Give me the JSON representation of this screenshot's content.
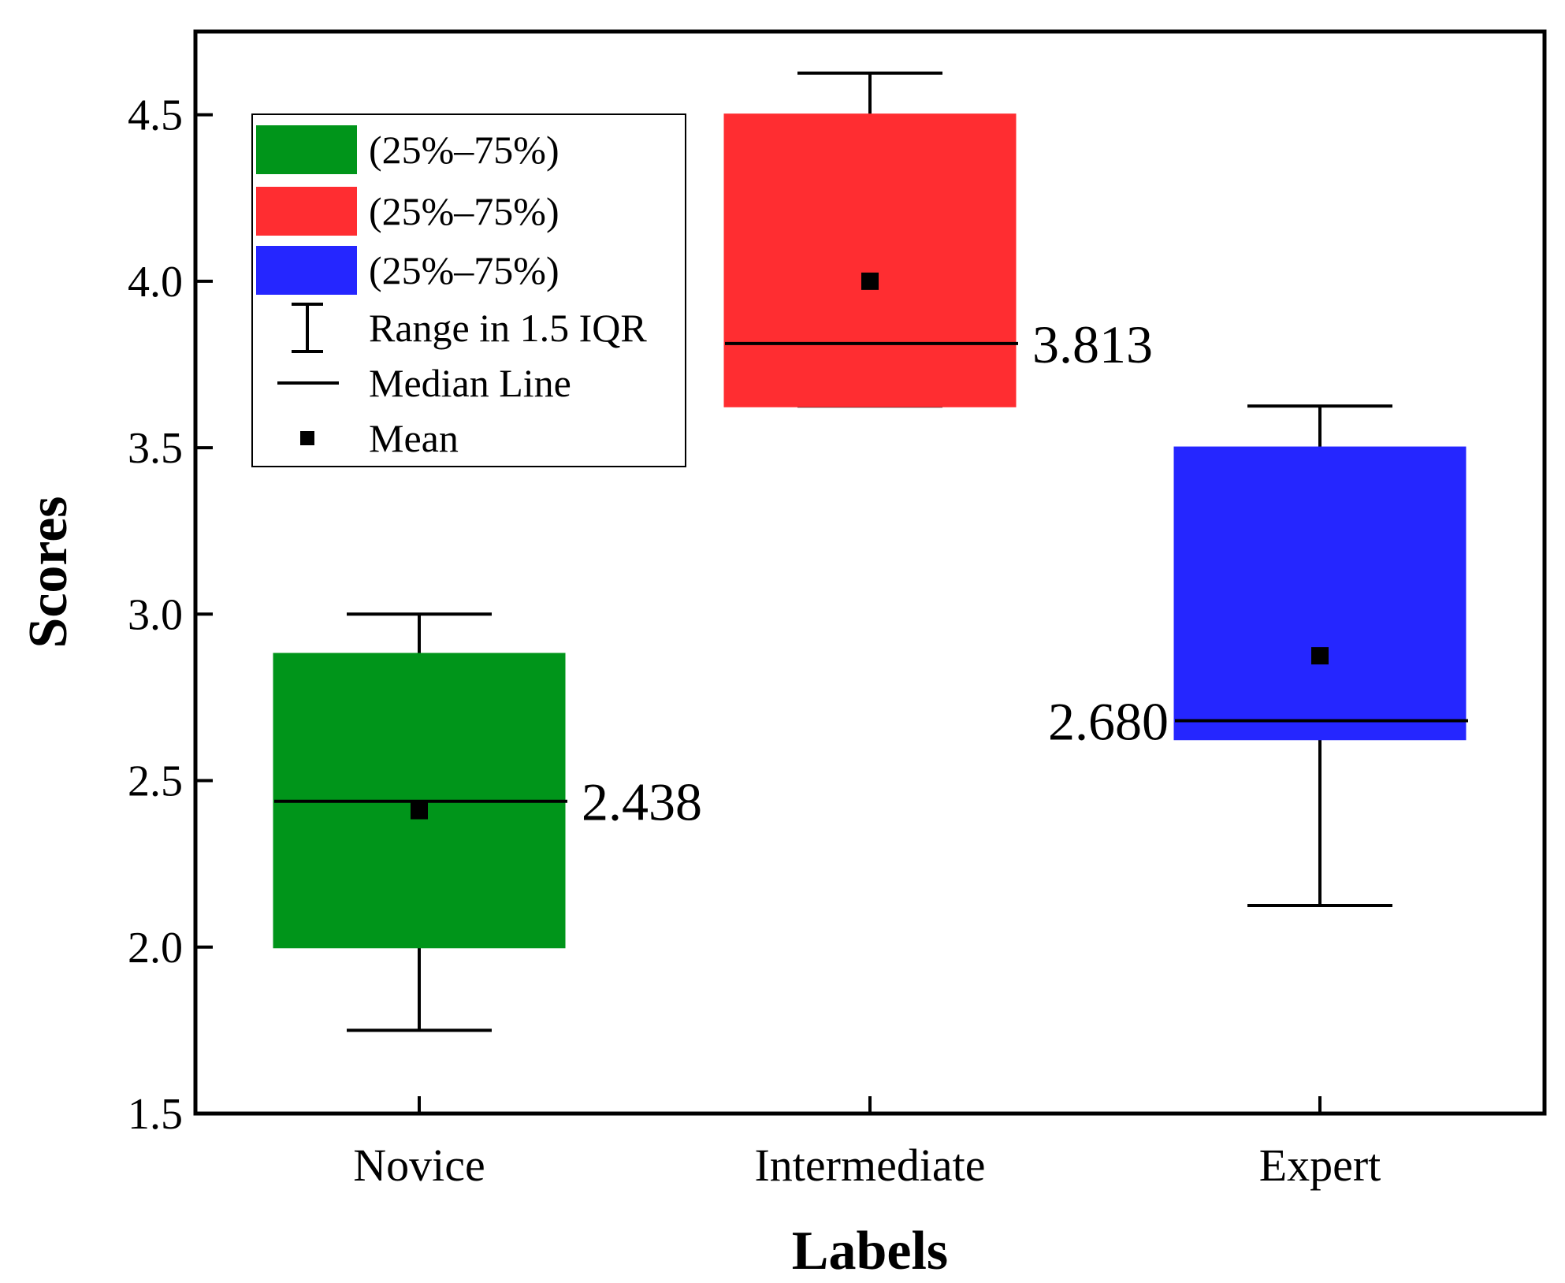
{
  "chart_data": {
    "type": "box",
    "xlabel": "Labels",
    "ylabel": "Scores",
    "ylim": [
      1.5,
      4.75
    ],
    "yticks": [
      1.5,
      2.0,
      2.5,
      3.0,
      3.5,
      4.0,
      4.5
    ],
    "ytick_labels": [
      "1.5",
      "2.0",
      "2.5",
      "3.0",
      "3.5",
      "4.0",
      "4.5"
    ],
    "categories": [
      "Novice",
      "Intermediate",
      "Expert"
    ],
    "boxes": [
      {
        "name": "Novice",
        "color": "#00951a",
        "q1": 2.0,
        "median": 2.438,
        "q3": 2.88,
        "whisker_low": 1.75,
        "whisker_high": 3.0,
        "mean": 2.41,
        "median_label": "2.438",
        "label_side": "right"
      },
      {
        "name": "Intermediate",
        "color": "#ff2d31",
        "q1": 3.625,
        "median": 3.813,
        "q3": 4.5,
        "whisker_low": 3.625,
        "whisker_high": 4.625,
        "mean": 4.0,
        "median_label": "3.813",
        "label_side": "right"
      },
      {
        "name": "Expert",
        "color": "#2526ff",
        "q1": 2.625,
        "median": 2.68,
        "q3": 3.5,
        "whisker_low": 2.125,
        "whisker_high": 3.625,
        "mean": 2.875,
        "median_label": "2.680",
        "label_side": "left"
      }
    ],
    "legend": {
      "position": "top-left",
      "items": [
        {
          "type": "box",
          "color": "#00951a",
          "label": "(25%–75%)"
        },
        {
          "type": "box",
          "color": "#ff2d31",
          "label": "(25%–75%)"
        },
        {
          "type": "box",
          "color": "#2526ff",
          "label": "(25%–75%)"
        },
        {
          "type": "whisker",
          "label": "Range in 1.5 IQR"
        },
        {
          "type": "median",
          "label": "Median Line"
        },
        {
          "type": "mean",
          "label": "Mean"
        }
      ]
    }
  }
}
